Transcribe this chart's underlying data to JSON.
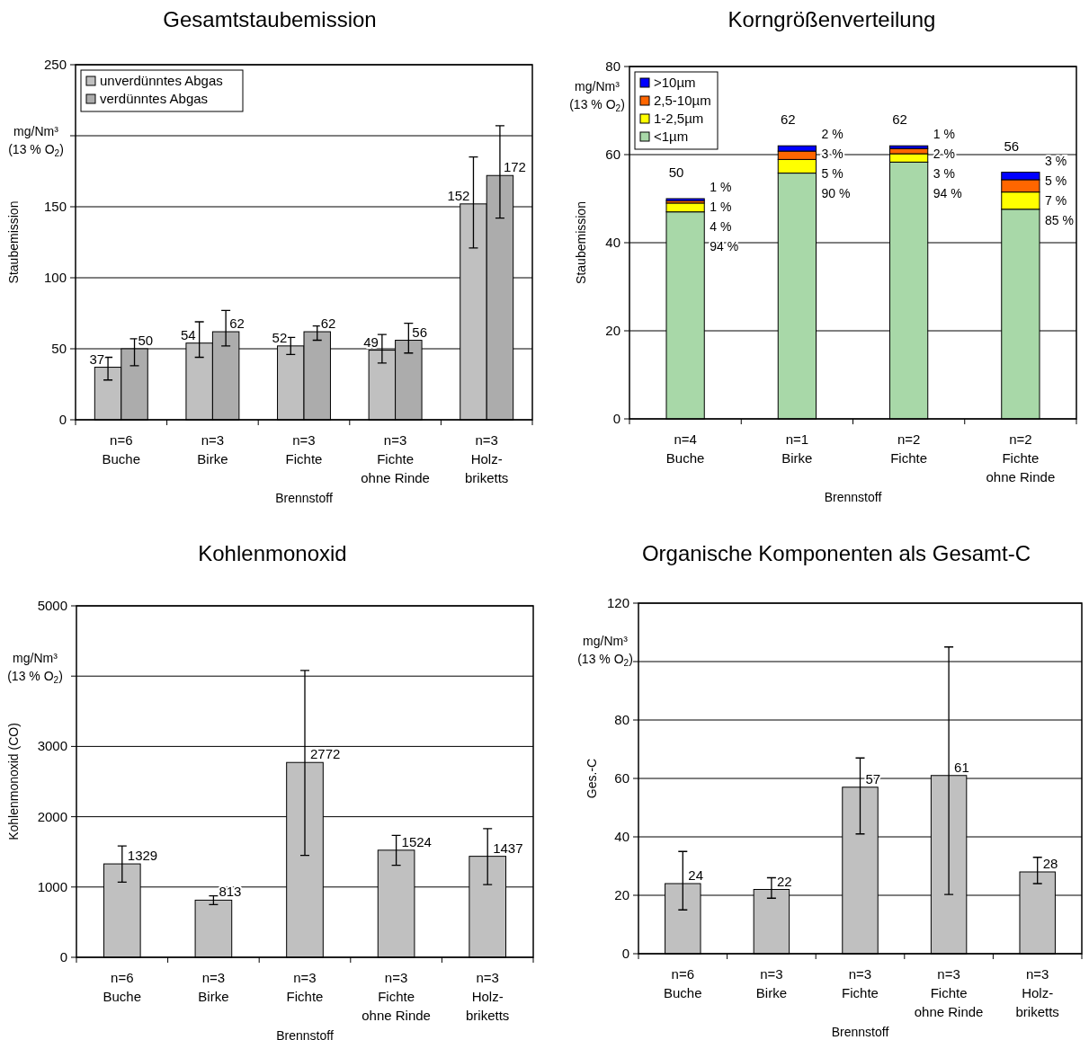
{
  "chart_data": [
    {
      "type": "bar",
      "title": "Gesamtstaubemission",
      "xlabel": "Brennstoff",
      "ylabel": "Staubemission",
      "annotations": [
        "mg/Nm³\n(13 % O$_{2}$)"
      ],
      "categories": [
        "n=6\nBuche",
        "n=3\nBirke",
        "n=3\nFichte",
        "n=3\nFichte\nohne Rinde",
        "n=3\nHolz-\nbriketts"
      ],
      "series": [
        {
          "name": "unverdünntes Abgas",
          "color": "#c0c0c0",
          "values": [
            37,
            54,
            52,
            49,
            152
          ],
          "errors": [
            [
              28,
              44
            ],
            [
              44,
              69
            ],
            [
              46,
              58
            ],
            [
              40,
              60
            ],
            [
              121,
              185
            ]
          ]
        },
        {
          "name": "verdünntes Abgas",
          "color": "#acacac",
          "values": [
            50,
            62,
            62,
            56,
            172
          ],
          "errors": [
            [
              38,
              57
            ],
            [
              52,
              77
            ],
            [
              56,
              66
            ],
            [
              47,
              68
            ],
            [
              142,
              207
            ]
          ]
        }
      ],
      "ylim": [
        0,
        250
      ],
      "yticks": [
        0,
        50,
        100,
        150,
        {
          "value": 200,
          "label": null
        },
        250
      ],
      "grid": "y",
      "legend": "top left",
      "data_labels": true
    },
    {
      "type": "bar",
      "title": "Korngrößenverteilung",
      "xlabel": "Brennstoff",
      "ylabel": "Staubemission",
      "annotations": [
        "mg/Nm³\n(13 % O$_{2}$)",
        {
          "text": "94 %",
          "x": "n=4\nBuche",
          "y": 47
        },
        {
          "text": "4 %",
          "x": "n=4\nBuche",
          "y": 49
        },
        {
          "text": "1 %",
          "x": "n=4\nBuche",
          "y": 49.5
        },
        {
          "text": "1 %",
          "x": "n=4\nBuche",
          "y": 50
        },
        {
          "text": "90 %",
          "x": "n=1\nBirke",
          "y": 55.8
        },
        {
          "text": "5 %",
          "x": "n=1\nBirke",
          "y": 58.9
        },
        {
          "text": "3 %",
          "x": "n=1\nBirke",
          "y": 60.8
        },
        {
          "text": "2 %",
          "x": "n=1\nBirke",
          "y": 62
        },
        {
          "text": "94 %",
          "x": "n=2\nFichte",
          "y": 58.3
        },
        {
          "text": "3 %",
          "x": "n=2\nFichte",
          "y": 60.2
        },
        {
          "text": "2 %",
          "x": "n=2\nFichte",
          "y": 61.4
        },
        {
          "text": "1 %",
          "x": "n=2\nFichte",
          "y": 62
        },
        {
          "text": "85 %",
          "x": "n=2\nFichte\nohne Rinde",
          "y": 47.6
        },
        {
          "text": "7 %",
          "x": "n=2\nFichte\nohne Rinde",
          "y": 51.5
        },
        {
          "text": "5 %",
          "x": "n=2\nFichte\nohne Rinde",
          "y": 54.3
        },
        {
          "text": "3 %",
          "x": "n=2\nFichte\nohne Rinde",
          "y": 56
        }
      ],
      "categories": [
        "n=4\nBuche",
        "n=1\nBirke",
        "n=2\nFichte",
        "n=2\nFichte\nohne Rinde"
      ],
      "stacked": true,
      "series": [
        {
          "name": "<1µm",
          "color": "#a8d8a8",
          "values": [
            47,
            55.8,
            58.3,
            47.6
          ]
        },
        {
          "name": "1-2,5µm",
          "color": "#ffff00",
          "values": [
            2,
            3.1,
            1.9,
            3.9
          ]
        },
        {
          "name": "2,5-10µm",
          "color": "#ff6600",
          "values": [
            0.5,
            1.9,
            1.2,
            2.8
          ]
        },
        {
          "name": ">10µm",
          "color": "#0000ff",
          "values": [
            0.5,
            1.2,
            0.6,
            1.7
          ]
        }
      ],
      "totals": [
        "50",
        "62",
        "62",
        "56"
      ],
      "ylim": [
        0,
        80
      ],
      "yticks": [
        0,
        20,
        40,
        60,
        80
      ],
      "grid": "y",
      "legend": "top left"
    },
    {
      "type": "bar",
      "title": "Kohlenmonoxid",
      "xlabel": "Brennstoff",
      "ylabel": "Kohlenmonoxid (CO)",
      "annotations": [
        "mg/Nm³\n(13 % O$_{2}$)"
      ],
      "categories": [
        "n=6\nBuche",
        "n=3\nBirke",
        "n=3\nFichte",
        "n=3\nFichte\nohne Rinde",
        "n=3\nHolz-\nbriketts"
      ],
      "series": [
        {
          "color": "#c0c0c0",
          "values": [
            1329,
            813,
            2772,
            1524,
            1437
          ],
          "errors": [
            [
              1070,
              1585
            ],
            [
              750,
              875
            ],
            [
              1450,
              4080
            ],
            [
              1310,
              1735
            ],
            [
              1035,
              1830
            ]
          ]
        }
      ],
      "ylim": [
        0,
        5000
      ],
      "yticks": [
        0,
        1000,
        2000,
        3000,
        {
          "value": 4000,
          "label": null
        },
        5000
      ],
      "grid": "y",
      "data_labels": true
    },
    {
      "type": "bar",
      "title": "Organische Komponenten als Gesamt-C",
      "xlabel": "Brennstoff",
      "ylabel": "Ges.-C",
      "annotations": [
        "mg/Nm³\n(13 % O$_{2}$)"
      ],
      "categories": [
        "n=6\nBuche",
        "n=3\nBirke",
        "n=3\nFichte",
        "n=3\nFichte\nohne Rinde",
        "n=3\nHolz-\nbriketts"
      ],
      "series": [
        {
          "color": "#c0c0c0",
          "values": [
            24,
            22,
            57,
            61,
            28
          ],
          "errors": [
            [
              15,
              35
            ],
            [
              19,
              26
            ],
            [
              41,
              67
            ],
            [
              20.3,
              105
            ],
            [
              24,
              33
            ]
          ]
        }
      ],
      "ylim": [
        0,
        120
      ],
      "yticks": [
        0,
        20,
        40,
        60,
        80,
        {
          "value": 100,
          "label": null
        },
        120
      ],
      "grid": "y",
      "data_labels": true
    }
  ]
}
